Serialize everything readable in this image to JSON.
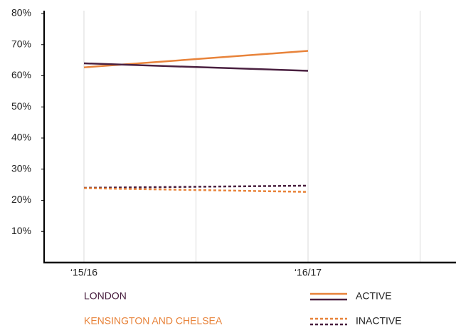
{
  "chart_data": {
    "type": "line",
    "categories": [
      "‘15/16",
      "‘16/17"
    ],
    "ylim": [
      0,
      80
    ],
    "yticks": [
      {
        "value": 10,
        "label": "10%"
      },
      {
        "value": 20,
        "label": "20%"
      },
      {
        "value": 30,
        "label": "30%"
      },
      {
        "value": 40,
        "label": "40%"
      },
      {
        "value": 50,
        "label": "50%"
      },
      {
        "value": 60,
        "label": "60%"
      },
      {
        "value": 70,
        "label": "70%"
      },
      {
        "value": 80,
        "label": "80%"
      }
    ],
    "grid": true,
    "legend": {
      "areas": [
        {
          "name": "LONDON",
          "color": "#4a2040"
        },
        {
          "name": "KENSINGTON AND CHELSEA",
          "color": "#e8833a"
        }
      ],
      "styles": [
        {
          "name": "ACTIVE",
          "dashed": false
        },
        {
          "name": "INACTIVE",
          "dashed": true
        }
      ]
    },
    "series": [
      {
        "area": 1,
        "style": 0,
        "values": [
          62.7,
          68.0
        ]
      },
      {
        "area": 0,
        "style": 0,
        "values": [
          64.0,
          61.6
        ]
      },
      {
        "area": 0,
        "style": 1,
        "values": [
          24.0,
          24.7
        ]
      },
      {
        "area": 1,
        "style": 1,
        "values": [
          23.9,
          22.7
        ]
      }
    ]
  }
}
